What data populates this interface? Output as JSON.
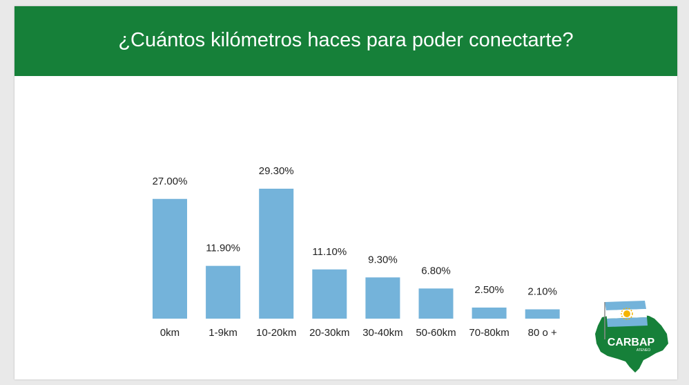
{
  "slide": {
    "title": "¿Cuántos kilómetros haces para poder conectarte?",
    "colors": {
      "header": "#168039",
      "bar": "#74b3da",
      "text": "#222222"
    }
  },
  "chart_data": {
    "type": "bar",
    "title": "",
    "xlabel": "",
    "ylabel": "",
    "categories": [
      "0km",
      "1-9km",
      "10-20km",
      "20-30km",
      "30-40km",
      "50-60km",
      "70-80km",
      "80 o +"
    ],
    "values": [
      27.0,
      11.9,
      29.3,
      11.1,
      9.3,
      6.8,
      2.5,
      2.1
    ],
    "data_labels": [
      "27.00%",
      "11.90%",
      "29.30%",
      "11.10%",
      "9.30%",
      "6.80%",
      "2.50%",
      "2.10%"
    ],
    "ylim": [
      0,
      29.3
    ],
    "grid": false,
    "legend": "none"
  },
  "logo": {
    "text": "CARBAP",
    "subtext": "ATENEO",
    "icon": "argentina-flag-sun-icon"
  }
}
